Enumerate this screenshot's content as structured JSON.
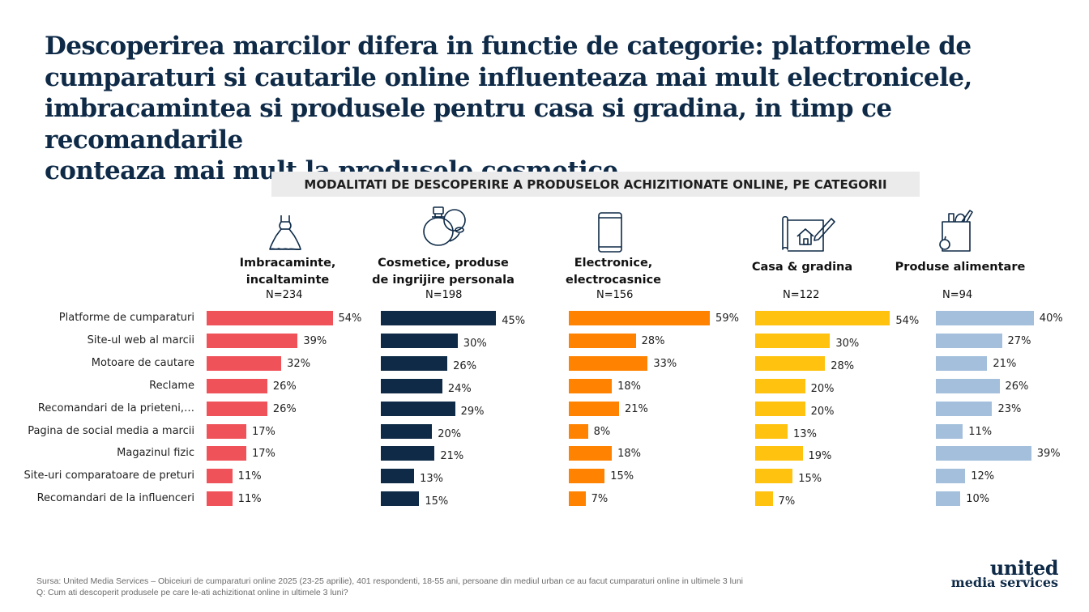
{
  "title": "Descoperirea marcilor difera in functie de categorie: platformele de\ncumparaturi si cautarile online influenteaza mai mult electronicele,\nimbracamintea si produsele pentru casa si gradina, in timp ce recomandarile\nconteaza mai mult la produsele cosmetice",
  "subtitle": "MODALITATI DE DESCOPERIRE A PRODUSELOR ACHIZITIONATE ONLINE, PE CATEGORII",
  "chart_data": {
    "type": "bar",
    "orientation": "horizontal",
    "categories": [
      "Platforme de cumparaturi",
      "Site-ul web al marcii",
      "Motoare de cautare",
      "Reclame",
      "Recomandari de la prieteni,…",
      "Pagina de social media a marcii",
      "Magazinul fizic",
      "Site-uri comparatoare de preturi",
      "Recomandari de la influenceri"
    ],
    "unit": "%",
    "series": [
      {
        "name": "Imbracaminte,\nincaltaminte",
        "n": "N=234",
        "color": "#f0525a",
        "icon": "dress-icon",
        "values": [
          54,
          39,
          32,
          26,
          26,
          17,
          17,
          11,
          11
        ]
      },
      {
        "name": "Cosmetice, produse\nde ingrijire personala",
        "n": "N=198",
        "color": "#0e2a47",
        "icon": "perfume-icon",
        "values": [
          45,
          30,
          26,
          24,
          29,
          20,
          21,
          13,
          15
        ]
      },
      {
        "name": "Electronice,\nelectrocasnice",
        "n": "N=156",
        "color": "#ff8200",
        "icon": "smartphone-icon",
        "values": [
          59,
          28,
          33,
          18,
          21,
          8,
          18,
          15,
          7
        ]
      },
      {
        "name": "Casa & gradina",
        "n": "N=122",
        "color": "#ffc20e",
        "icon": "house-plan-icon",
        "values": [
          54,
          30,
          28,
          20,
          20,
          13,
          19,
          15,
          7
        ]
      },
      {
        "name": "Produse alimentare",
        "n": "N=94",
        "color": "#a3bfdc",
        "icon": "grocery-bag-icon",
        "values": [
          40,
          27,
          21,
          26,
          23,
          11,
          39,
          12,
          10
        ]
      }
    ]
  },
  "footnote": {
    "source": "Sursa: United Media Services – Obiceiuri de cumparaturi online 2025 (23-25 aprilie), 401 respondenti, 18-55 ani, persoane din mediul urban ce au facut cumparaturi online in ultimele 3 luni",
    "question": "Q: Cum ati descoperit produsele pe care le-ati achizitionat online in ultimele 3 luni?"
  },
  "logo": {
    "line1": "united",
    "line2": "media services"
  }
}
